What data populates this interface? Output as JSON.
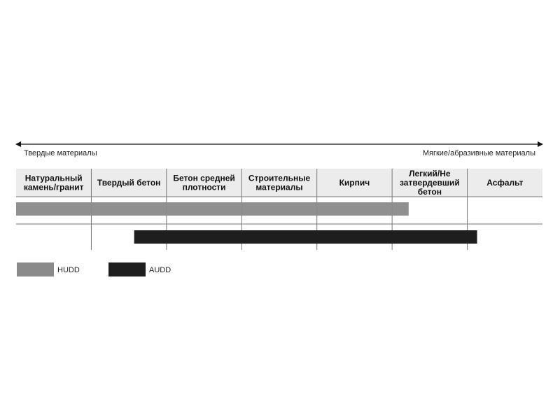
{
  "chart_data": {
    "type": "range-bar",
    "axis": {
      "left_label": "Твердые материалы",
      "right_label": "Мягкие/абразивные материалы"
    },
    "categories": [
      [
        "Натуральный",
        "камень/гранит"
      ],
      [
        "Твердый бетон"
      ],
      [
        "Бетон средней",
        "плотности"
      ],
      [
        "Строительные",
        "материалы"
      ],
      [
        "Кирпич"
      ],
      [
        "Легкий/Не",
        "затвердевший",
        "бетон"
      ],
      [
        "Асфальт"
      ]
    ],
    "series": [
      {
        "name": "HUDD",
        "color": "#8a8a8a",
        "start": 0,
        "end": 5.22
      },
      {
        "name": "AUDD",
        "color": "#1e1e1e",
        "start": 1.57,
        "end": 6.13
      }
    ],
    "range_units": "category index (0 = left edge of first column, 7 = right edge of last)"
  }
}
